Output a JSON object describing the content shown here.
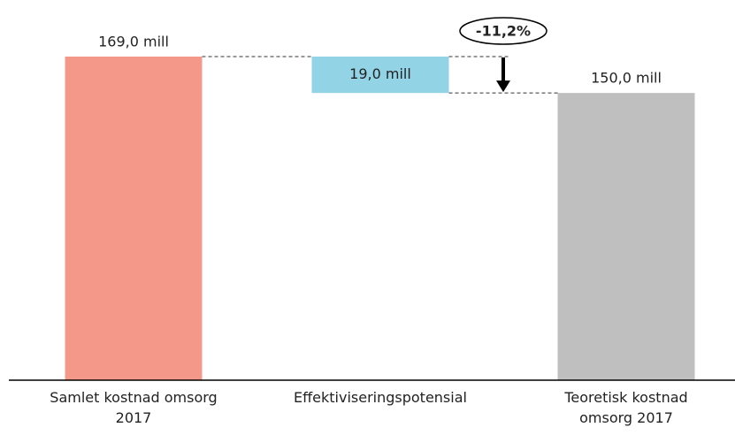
{
  "chart_data": {
    "type": "waterfall",
    "categories": [
      "Samlet kostnad omsorg 2017",
      "Effektiviseringspotensial",
      "Teoretisk kostnad omsorg 2017"
    ],
    "values": [
      169,
      19,
      150
    ],
    "value_labels": [
      "169,0 mill",
      "19,0 mill",
      "150,0 mill"
    ],
    "measure": [
      "total",
      "decrease",
      "total"
    ],
    "colors": [
      "#f4998a",
      "#92d3e5",
      "#bfbfbf"
    ],
    "annotation": "-11,2%"
  }
}
